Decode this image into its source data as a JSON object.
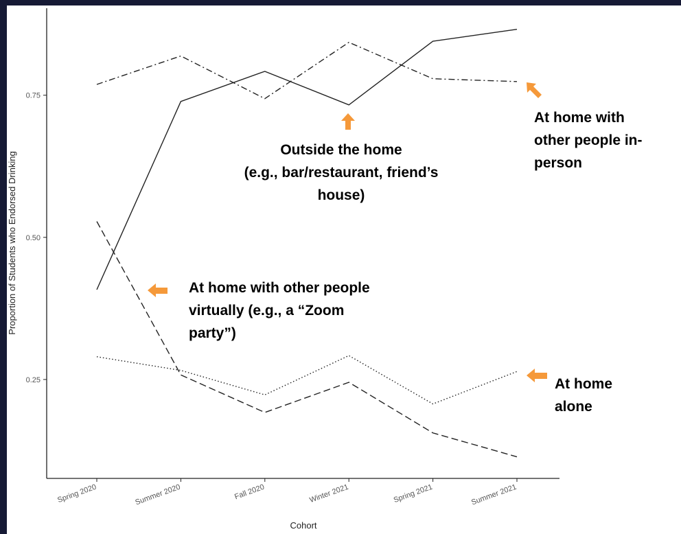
{
  "chart_data": {
    "type": "line",
    "x_label": "Cohort",
    "y_label": "Proportion of Students who Endorsed Drinking",
    "categories": [
      "Spring 2020",
      "Summer 2020",
      "Fall 2020",
      "Winter 2021",
      "Spring 2021",
      "Summer 2021"
    ],
    "series": [
      {
        "color": "#222222",
        "dash": "solid",
        "values": [
          0.408,
          0.739,
          0.792,
          0.733,
          0.845,
          0.866
        ]
      },
      {
        "color": "#222222",
        "dash": "dashdot",
        "values": [
          0.769,
          0.819,
          0.744,
          0.843,
          0.779,
          0.774
        ]
      },
      {
        "color": "#222222",
        "dash": "dashed",
        "values": [
          0.528,
          0.258,
          0.192,
          0.245,
          0.156,
          0.114
        ]
      },
      {
        "color": "#222222",
        "dash": "dotted",
        "values": [
          0.29,
          0.266,
          0.223,
          0.292,
          0.207,
          0.264
        ]
      }
    ],
    "ylim": [
      0.076,
      0.903
    ],
    "yticks": [
      {
        "value": 0.25,
        "label": "0.25"
      },
      {
        "value": 0.5,
        "label": "0.50"
      },
      {
        "value": 0.75,
        "label": "0.75"
      }
    ],
    "grid": false,
    "annotations": [
      {
        "lines": [
          "Outside the home",
          "(e.g., bar/restaurant, friend’s",
          "house)"
        ]
      },
      {
        "lines": [
          "At home with",
          "other people in-",
          "person"
        ]
      },
      {
        "lines": [
          "At home with other people",
          "virtually (e.g., a “Zoom",
          "party”)"
        ]
      },
      {
        "lines": [
          "At home",
          "alone"
        ]
      }
    ]
  }
}
